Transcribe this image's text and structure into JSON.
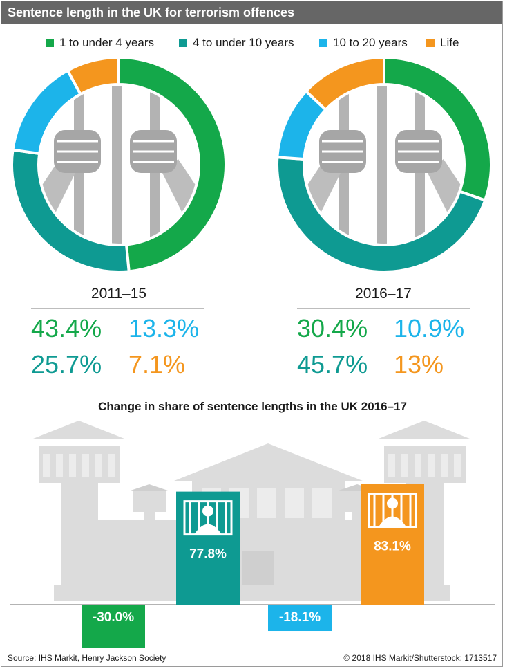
{
  "title": "Sentence length in the UK for terrorism offences",
  "legend": [
    {
      "label": "1 to under 4 years",
      "color": "#14a84a"
    },
    {
      "label": "4 to under 10 years",
      "color": "#0e9a92"
    },
    {
      "label": "10 to 20 years",
      "color": "#1cb4ea"
    },
    {
      "label": "Life",
      "color": "#f4961e"
    }
  ],
  "donuts": [
    {
      "period": "2011–15",
      "values": [
        "43.4%",
        "25.7%",
        "13.3%",
        "7.1%"
      ]
    },
    {
      "period": "2016–17",
      "values": [
        "30.4%",
        "45.7%",
        "10.9%",
        "13%"
      ]
    }
  ],
  "change_title": "Change in share of sentence lengths in the UK 2016–17",
  "change_labels": [
    "-30.0%",
    "77.8%",
    "-18.1%",
    "83.1%"
  ],
  "footer": {
    "source": "Source: IHS Markit, Henry Jackson Society",
    "credit": "© 2018 IHS Markit/Shutterstock: 1713517"
  },
  "chart_data": [
    {
      "type": "pie",
      "title": "2011–15",
      "categories": [
        "1 to under 4 years",
        "4 to under 10 years",
        "10 to 20 years",
        "Life"
      ],
      "values": [
        43.4,
        25.7,
        13.3,
        7.1
      ],
      "colors": [
        "#14a84a",
        "#0e9a92",
        "#1cb4ea",
        "#f4961e"
      ],
      "legend_position": "top"
    },
    {
      "type": "pie",
      "title": "2016–17",
      "categories": [
        "1 to under 4 years",
        "4 to under 10 years",
        "10 to 20 years",
        "Life"
      ],
      "values": [
        30.4,
        45.7,
        10.9,
        13
      ],
      "colors": [
        "#14a84a",
        "#0e9a92",
        "#1cb4ea",
        "#f4961e"
      ],
      "legend_position": "top"
    },
    {
      "type": "bar",
      "title": "Change in share of sentence lengths in the UK 2016–17",
      "categories": [
        "1 to under 4 years",
        "4 to under 10 years",
        "10 to 20 years",
        "Life"
      ],
      "values": [
        -30.0,
        77.8,
        -18.1,
        83.1
      ],
      "colors": [
        "#14a84a",
        "#0e9a92",
        "#1cb4ea",
        "#f4961e"
      ]
    }
  ]
}
